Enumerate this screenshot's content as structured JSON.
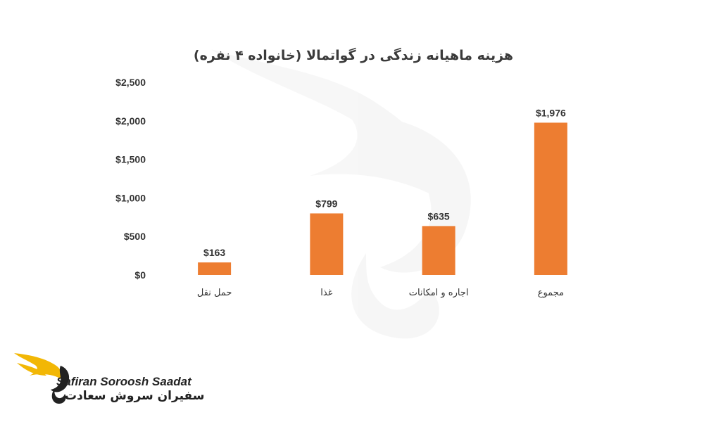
{
  "chart_data": {
    "type": "bar",
    "title": "هزینه ماهیانه زندگی در گواتمالا (خانواده ۴ نفره)",
    "categories": [
      "حمل نقل",
      "غذا",
      "اجاره و امکانات",
      "مجموع"
    ],
    "values": [
      163,
      799,
      635,
      1976
    ],
    "data_labels": [
      "$163",
      "$799",
      "$635",
      "$1,976"
    ],
    "ylim": [
      0,
      2500
    ],
    "y_ticks": [
      "$0",
      "$500",
      "$1,000",
      "$1,500",
      "$2,000",
      "$2,500"
    ],
    "bar_color": "#ED7D31",
    "grid": false,
    "legend": "none"
  },
  "brand": {
    "name_en": "Safiran Soroosh Saadat",
    "name_fa": "سفیران سروش سعادت",
    "accent_color": "#F2B705",
    "icon": "winged-swan-logo-icon"
  }
}
